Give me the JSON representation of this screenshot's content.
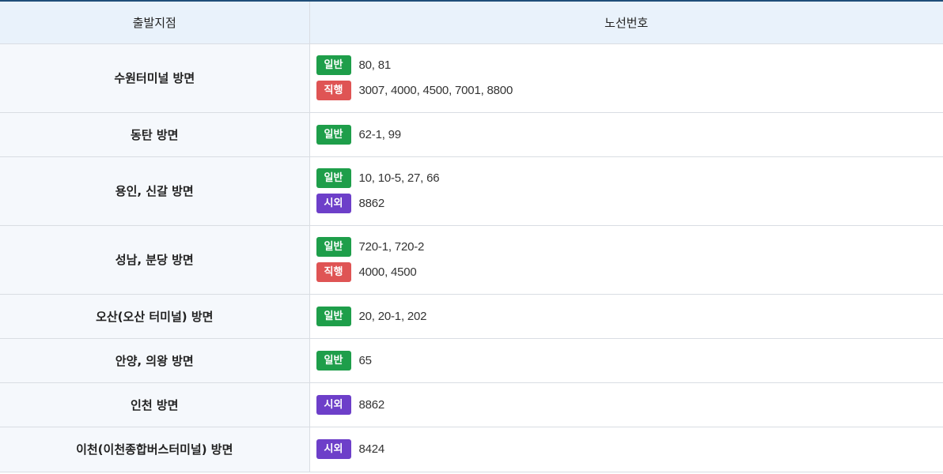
{
  "header": {
    "col_origin": "출발지점",
    "col_routes": "노선번호"
  },
  "colors": {
    "general": "#1e9e4a",
    "express": "#df5454",
    "intercity": "#6d3fc9"
  },
  "rows": [
    {
      "origin": "수원터미널 방면",
      "lines": [
        {
          "type": "general",
          "label": "일반",
          "numbers": "80, 81"
        },
        {
          "type": "express",
          "label": "직행",
          "numbers": "3007, 4000, 4500, 7001, 8800"
        }
      ]
    },
    {
      "origin": "동탄 방면",
      "lines": [
        {
          "type": "general",
          "label": "일반",
          "numbers": "62-1, 99"
        }
      ]
    },
    {
      "origin": "용인, 신갈 방면",
      "lines": [
        {
          "type": "general",
          "label": "일반",
          "numbers": "10, 10-5, 27, 66"
        },
        {
          "type": "intercity",
          "label": "시외",
          "numbers": "8862"
        }
      ]
    },
    {
      "origin": "성남, 분당 방면",
      "lines": [
        {
          "type": "general",
          "label": "일반",
          "numbers": "720-1, 720-2"
        },
        {
          "type": "express",
          "label": "직행",
          "numbers": "4000, 4500"
        }
      ]
    },
    {
      "origin": "오산(오산 터미널) 방면",
      "lines": [
        {
          "type": "general",
          "label": "일반",
          "numbers": "20, 20-1, 202"
        }
      ]
    },
    {
      "origin": "안양, 의왕 방면",
      "lines": [
        {
          "type": "general",
          "label": "일반",
          "numbers": "65"
        }
      ]
    },
    {
      "origin": "인천 방면",
      "lines": [
        {
          "type": "intercity",
          "label": "시외",
          "numbers": "8862"
        }
      ]
    },
    {
      "origin": "이천(이천종합버스터미널) 방면",
      "lines": [
        {
          "type": "intercity",
          "label": "시외",
          "numbers": "8424"
        }
      ]
    }
  ]
}
